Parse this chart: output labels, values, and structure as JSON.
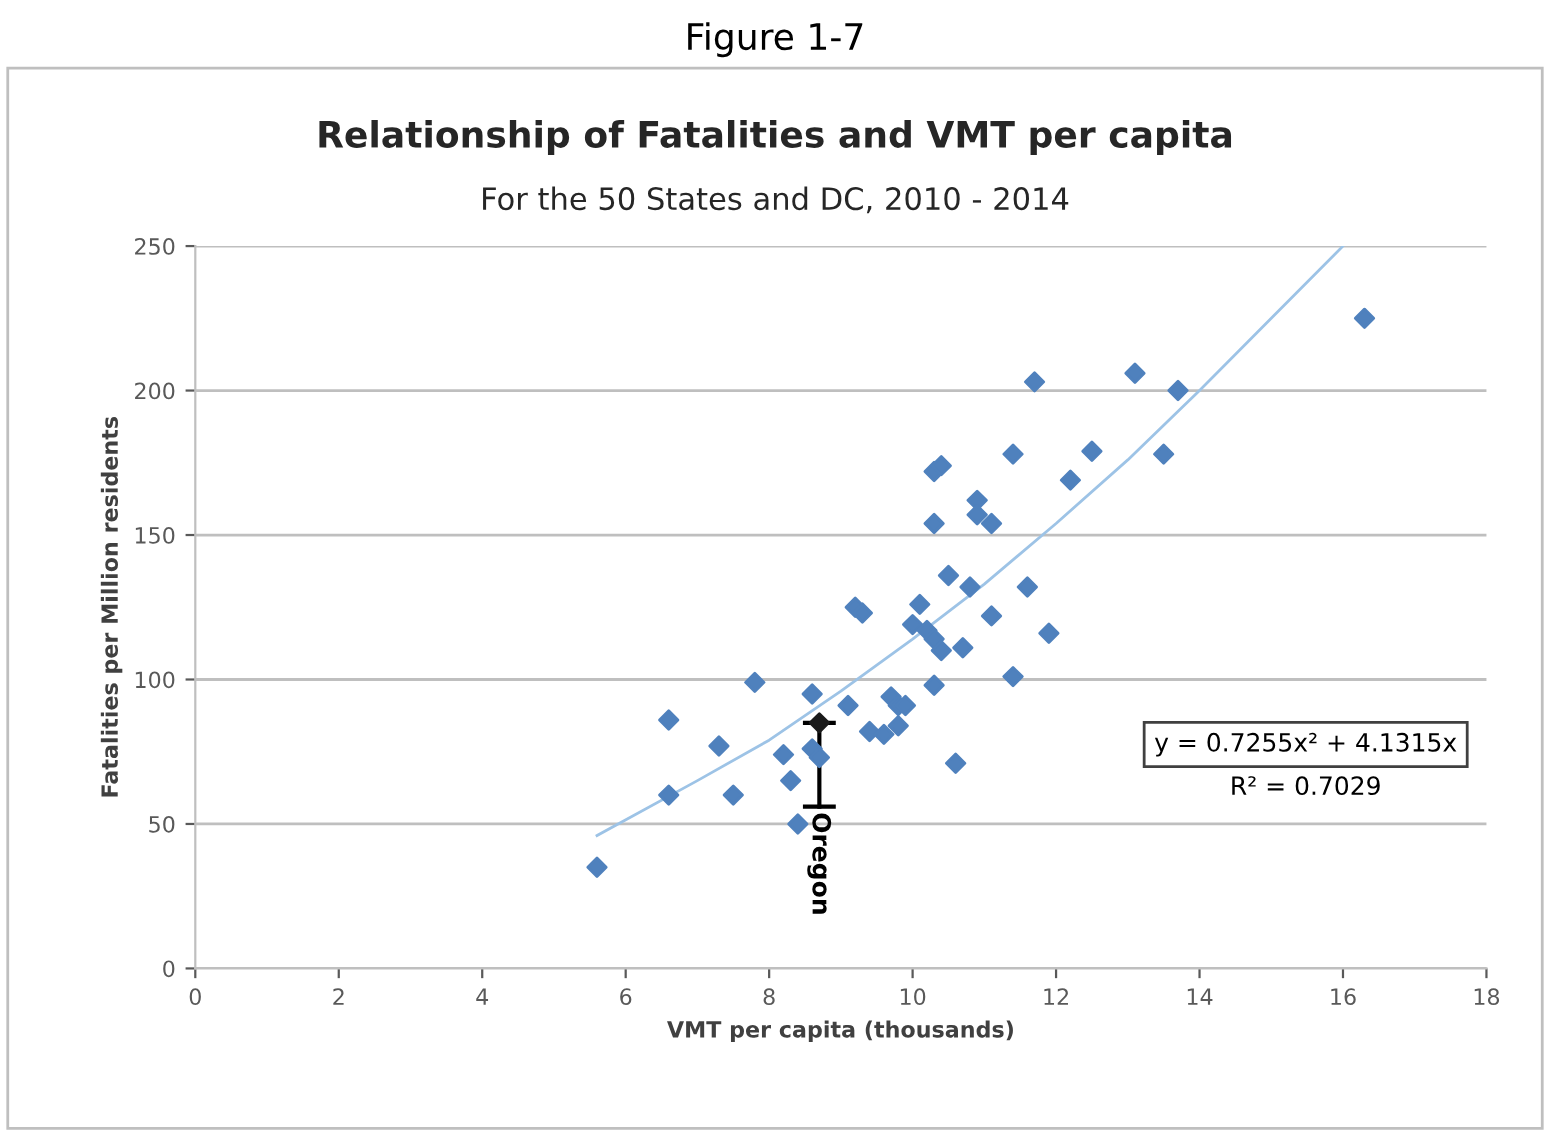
{
  "chart_data": {
    "type": "scatter",
    "title": "Relationship of Fatalities and VMT per capita",
    "subtitle": "For the 50 States and DC, 2010 - 2014",
    "xlabel": "VMT per capita (thousands)",
    "ylabel": "Fatalities per Million residents",
    "xlim": [
      0,
      18
    ],
    "xticks": [
      0,
      2,
      4,
      6,
      8,
      10,
      12,
      14,
      16,
      18
    ],
    "ylim": [
      0,
      250
    ],
    "yticks": [
      0,
      50,
      100,
      150,
      200,
      250
    ],
    "grid": "y",
    "legend": false,
    "marker": "diamond",
    "series": [
      {
        "color": "#4f81bd",
        "x": [
          5.6,
          6.6,
          6.6,
          7.3,
          7.5,
          7.8,
          8.2,
          8.3,
          8.4,
          8.6,
          8.6,
          8.7,
          9.1,
          9.2,
          9.3,
          9.4,
          9.6,
          9.7,
          9.8,
          9.8,
          9.9,
          10.1,
          10.0,
          10.2,
          10.3,
          10.4,
          10.3,
          10.6,
          10.7,
          10.5,
          10.8,
          11.1,
          11.4,
          11.6,
          11.9,
          10.3,
          10.3,
          10.4,
          10.9,
          10.9,
          11.1,
          11.4,
          11.7,
          12.2,
          12.5,
          13.1,
          13.7,
          13.5,
          16.3
        ],
        "values": [
          35,
          86,
          60,
          77,
          60,
          99,
          74,
          65,
          50,
          95,
          76,
          73,
          91,
          125,
          123,
          82,
          81,
          94,
          91,
          84,
          91,
          126,
          119,
          117,
          114,
          110,
          98,
          71,
          111,
          136,
          132,
          122,
          101,
          132,
          116,
          154,
          172,
          174,
          162,
          157,
          154,
          178,
          203,
          169,
          179,
          206,
          200,
          178,
          225
        ]
      },
      {
        "color": "#1a1a1a",
        "x": [
          8.7
        ],
        "values": [
          85
        ],
        "errors": [
          [
            56,
            85
          ]
        ]
      },
      {
        "type": "line",
        "color": "#9dc3e6",
        "marker": "none",
        "x": [
          5.6,
          7,
          8,
          9,
          10,
          11,
          12,
          13,
          14,
          15,
          16
        ],
        "values": [
          46,
          65,
          79,
          96,
          114,
          133,
          154,
          176,
          200,
          225,
          250
        ]
      }
    ],
    "annotations": [
      "Figure 1-7",
      {
        "text": "Oregon",
        "x": 8.7,
        "y": 56
      },
      "y = 0.7255x² + 4.1315x",
      "R² = 0.7029"
    ]
  }
}
